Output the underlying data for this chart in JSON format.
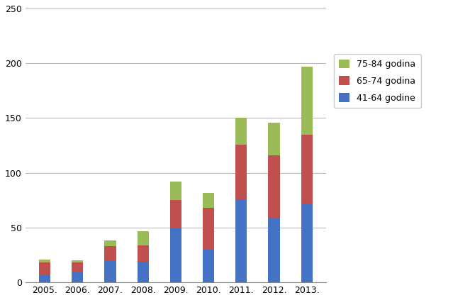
{
  "years": [
    "2005.",
    "2006.",
    "2007.",
    "2008.",
    "2009.",
    "2010.",
    "2011.",
    "2012.",
    "2013."
  ],
  "series": {
    "41-64 godine": [
      7,
      10,
      20,
      19,
      49,
      30,
      76,
      59,
      72
    ],
    "65-74 godina": [
      11,
      8,
      13,
      15,
      26,
      38,
      50,
      57,
      63
    ],
    "75-84 godina": [
      3,
      2,
      5,
      13,
      17,
      14,
      24,
      30,
      62
    ]
  },
  "colors": {
    "41-64 godine": "#4472C4",
    "65-74 godina": "#C0504D",
    "75-84 godina": "#9BBB59"
  },
  "ylim": [
    0,
    250
  ],
  "yticks": [
    0,
    50,
    100,
    150,
    200,
    250
  ],
  "legend_order": [
    "75-84 godina",
    "65-74 godina",
    "41-64 godine"
  ],
  "background_color": "#ffffff",
  "grid_color": "#bbbbbb",
  "bar_width": 0.35
}
